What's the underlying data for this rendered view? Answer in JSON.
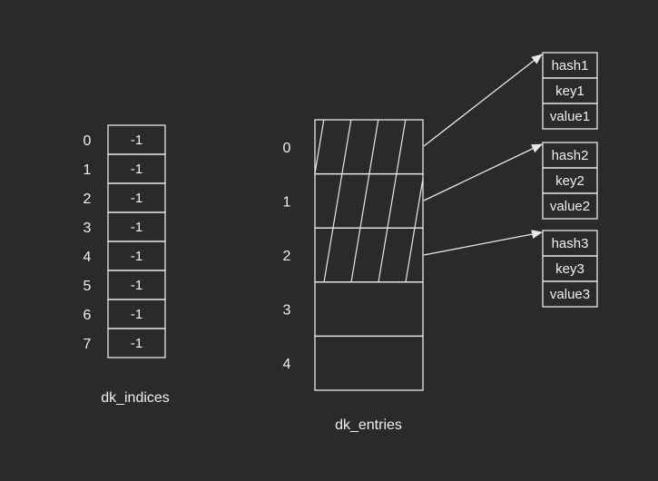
{
  "dk_indices": {
    "caption": "dk_indices",
    "index_labels": [
      "0",
      "1",
      "2",
      "3",
      "4",
      "5",
      "6",
      "7"
    ],
    "values": [
      "-1",
      "-1",
      "-1",
      "-1",
      "-1",
      "-1",
      "-1",
      "-1"
    ]
  },
  "dk_entries": {
    "caption": "dk_entries",
    "index_labels": [
      "0",
      "1",
      "2",
      "3",
      "4"
    ],
    "filled_count": 3
  },
  "entries": [
    {
      "hash": "hash1",
      "key": "key1",
      "value": "value1"
    },
    {
      "hash": "hash2",
      "key": "key2",
      "value": "value2"
    },
    {
      "hash": "hash3",
      "key": "key3",
      "value": "value3"
    }
  ],
  "colors": {
    "background": "#2a2a2a",
    "stroke": "#e8e8e8",
    "text": "#f0f0f0"
  }
}
